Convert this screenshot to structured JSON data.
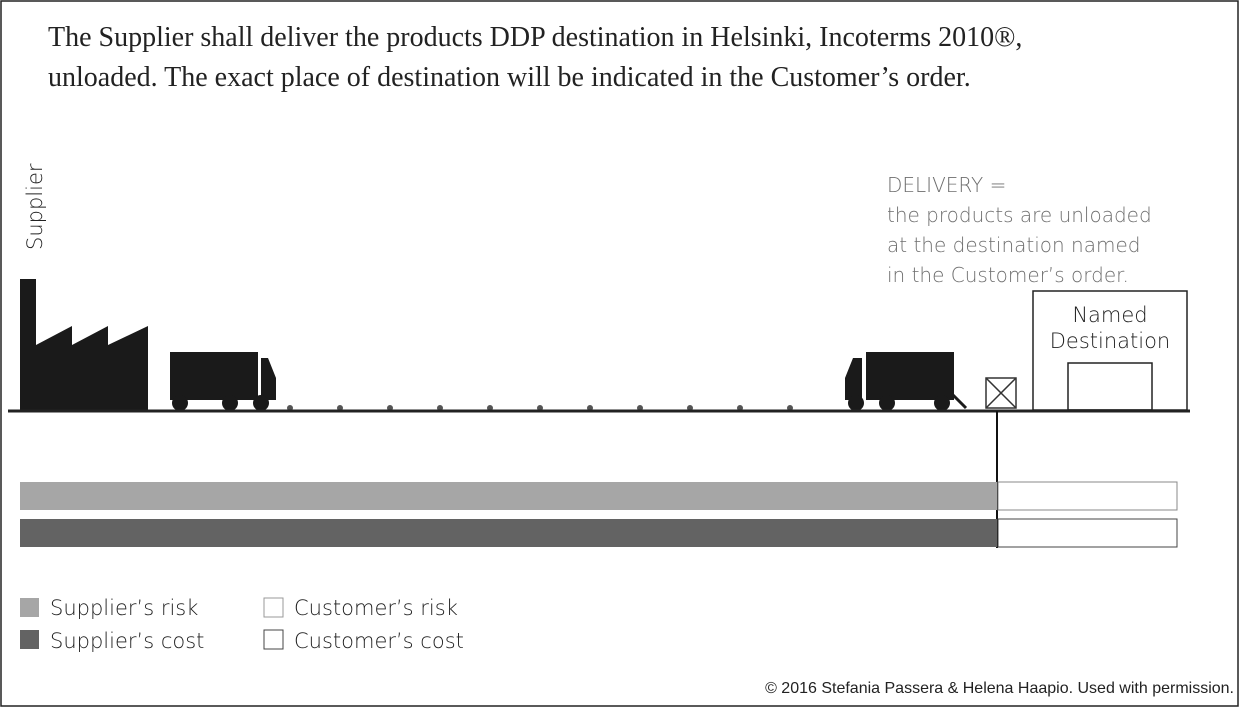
{
  "heading": {
    "lines": [
      "The Supplier shall deliver the products DDP destination in Helsinki, Incoterms 2010®,",
      "unloaded. The exact place of destination will be indicated in the Customer’s order."
    ]
  },
  "supplier_label": "Supplier",
  "delivery_note": {
    "lines": [
      "DELIVERY =",
      "the products are unloaded",
      "at the destination named",
      "in the Customer’s order."
    ]
  },
  "destination": {
    "lines": [
      "Named",
      "Destination"
    ]
  },
  "legend": {
    "supplier_risk": "Supplier’s risk",
    "supplier_cost": "Supplier’s cost",
    "customer_risk": "Customer’s risk",
    "customer_cost": "Customer’s cost"
  },
  "credit": "© 2016 Stefania Passera & Helena Haapio. Used with permission."
}
